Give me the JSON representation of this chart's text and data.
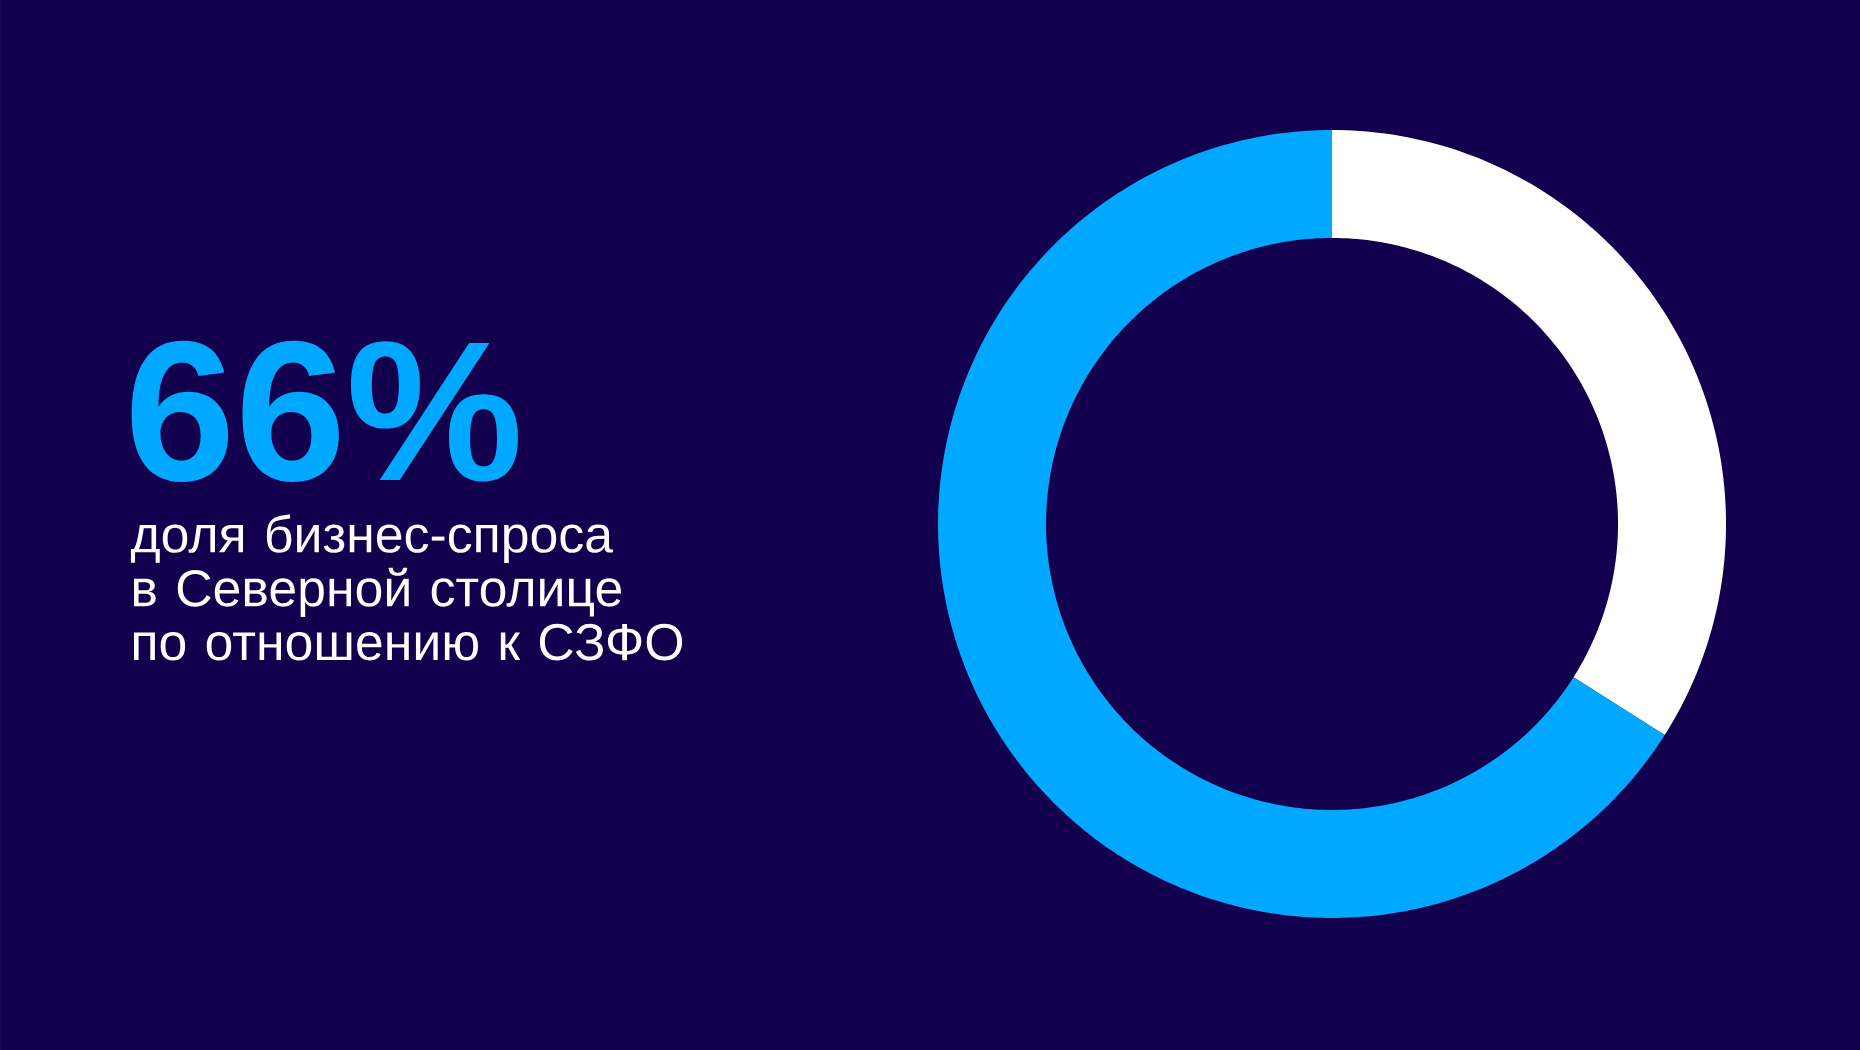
{
  "chart_data": {
    "type": "donut",
    "title": "66%",
    "subtitle": "доля бизнес-спроса\nв Северной столице\nпо отношению к СЗФО",
    "categories": [
      null,
      null
    ],
    "values": [
      34,
      66
    ],
    "colors": [
      "#ffffff",
      "#00a8ff"
    ]
  }
}
